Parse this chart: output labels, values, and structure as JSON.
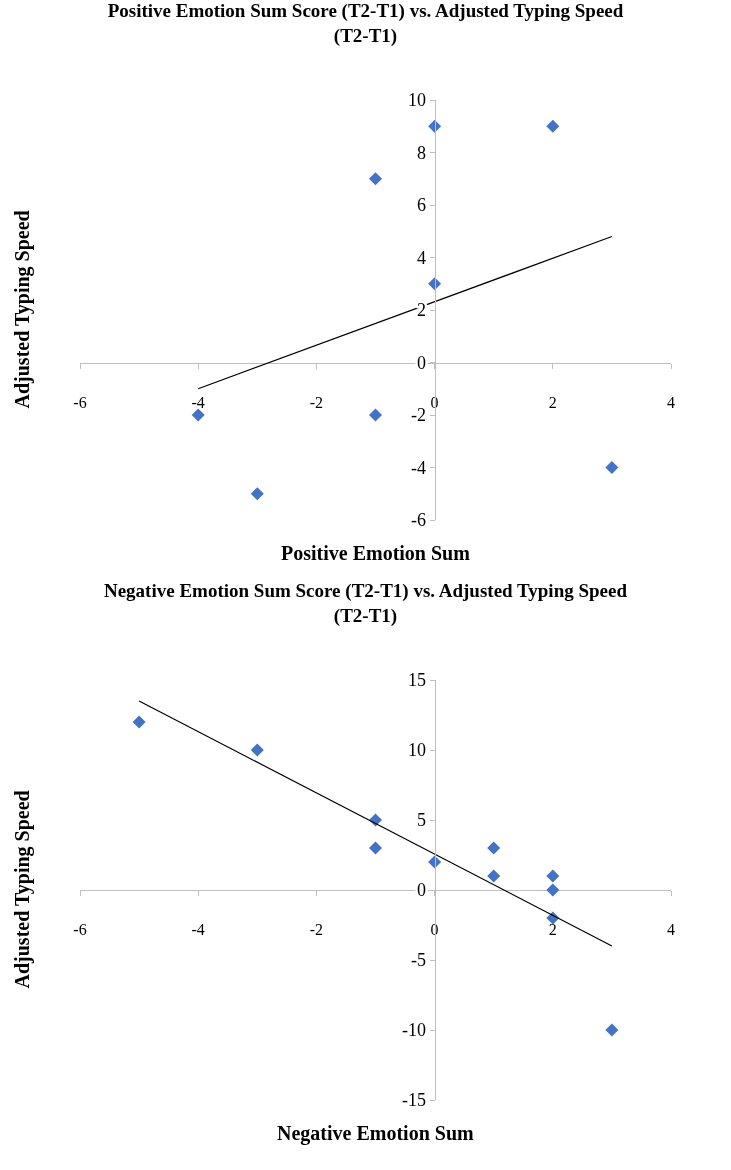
{
  "chart_data": [
    {
      "type": "scatter",
      "title": "Positive Emotion Sum Score (T2-T1) vs. Adjusted Typing Speed (T2-T1)",
      "xlabel": "Positive Emotion Sum",
      "ylabel": "Adjusted Typing Speed",
      "series": [
        {
          "type": "scatter",
          "color": "#4472c4",
          "marker": "diamond",
          "x": [
            0,
            2,
            -1,
            0,
            -4,
            -1,
            -3,
            3
          ],
          "values": [
            9,
            9,
            7,
            3,
            -2,
            -2,
            -5,
            -4
          ]
        },
        {
          "type": "line",
          "color": "#000000",
          "marker": "none",
          "x": [
            -4,
            3
          ],
          "values": [
            -1.0,
            4.8
          ]
        }
      ],
      "xlim": [
        -6,
        4
      ],
      "xticks": [
        -6,
        -4,
        -2,
        0,
        2,
        4
      ],
      "ylim": [
        -6,
        10
      ],
      "yticks": [
        -6,
        -4,
        -2,
        0,
        2,
        4,
        6,
        8,
        10
      ],
      "grid": false
    },
    {
      "type": "scatter",
      "title": "Negative Emotion Sum Score (T2-T1) vs. Adjusted Typing Speed (T2-T1)",
      "xlabel": "Negative Emotion Sum",
      "ylabel": "Adjusted Typing Speed",
      "series": [
        {
          "type": "scatter",
          "color": "#4472c4",
          "marker": "diamond",
          "x": [
            -5,
            -3,
            -1,
            -1,
            0,
            1,
            1,
            2,
            2,
            2,
            3
          ],
          "values": [
            12,
            10,
            5,
            3,
            2,
            3,
            1,
            1,
            0,
            -2,
            -10
          ]
        },
        {
          "type": "line",
          "color": "#000000",
          "marker": "none",
          "x": [
            -5,
            3
          ],
          "values": [
            13.5,
            -4
          ]
        }
      ],
      "xlim": [
        -6,
        4
      ],
      "xticks": [
        -6,
        -4,
        -2,
        0,
        2,
        4
      ],
      "ylim": [
        -15,
        15
      ],
      "yticks": [
        -15,
        -10,
        -5,
        0,
        5,
        10,
        15
      ],
      "grid": false
    }
  ]
}
